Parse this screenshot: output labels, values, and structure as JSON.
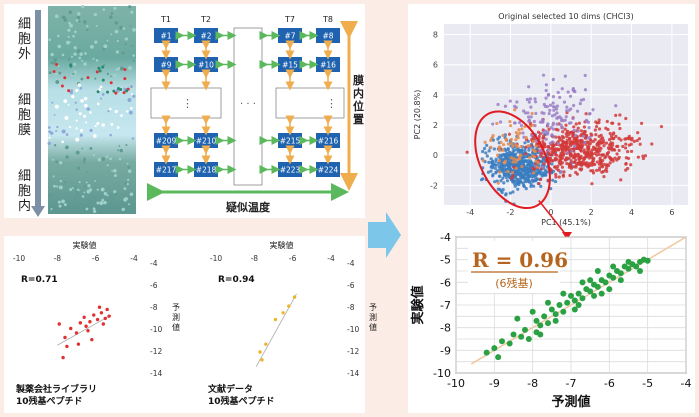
{
  "membrane": {
    "side_labels": [
      "細胞外",
      "細胞膜",
      "細胞内"
    ],
    "columns": [
      "T1",
      "T2",
      "T7",
      "T8"
    ],
    "replicas": [
      [
        "#1",
        "#2",
        "#7",
        "#8"
      ],
      [
        "#9",
        "#10",
        "#15",
        "#16"
      ],
      [
        "#209",
        "#210",
        "#215",
        "#216"
      ],
      [
        "#217",
        "#218",
        "#223",
        "#224"
      ]
    ],
    "vertical_ellipsis": "⋮",
    "horizontal_ellipsis": "· · ·",
    "vertical_axis_label": "膜内位置",
    "horizontal_axis_label": "疑似温度",
    "colors": {
      "box": "#1f63b0",
      "arrow_green": "#5cb85c",
      "arrow_orange": "#f0ad4e",
      "side_arrow": "#7d8fa5"
    }
  },
  "mini_charts": [
    {
      "type": "scatter",
      "xlabel": "実験値",
      "ylabel": "予測値",
      "xticks": [
        "-10",
        "-8",
        "-6",
        "-4"
      ],
      "yticks": [
        "-4",
        "-6",
        "-8",
        "-10",
        "-12",
        "-14"
      ],
      "xlim": [
        -10,
        -4
      ],
      "ylim": [
        -14,
        -4
      ],
      "r_text": "R=0.71",
      "caption": [
        "製薬会社ライブラリ",
        "10残基ペプチド"
      ],
      "color": "#e03030",
      "points": [
        [
          -7.9,
          -9.0
        ],
        [
          -7.6,
          -10.2
        ],
        [
          -7.3,
          -9.4
        ],
        [
          -7.0,
          -9.8
        ],
        [
          -6.8,
          -8.9
        ],
        [
          -6.6,
          -8.4
        ],
        [
          -6.5,
          -9.2
        ],
        [
          -6.3,
          -8.8
        ],
        [
          -6.1,
          -8.2
        ],
        [
          -5.9,
          -8.6
        ],
        [
          -5.7,
          -8.0
        ],
        [
          -5.5,
          -8.5
        ],
        [
          -5.4,
          -7.7
        ],
        [
          -5.3,
          -8.3
        ],
        [
          -5.8,
          -7.5
        ],
        [
          -6.2,
          -10.4
        ],
        [
          -7.5,
          -11.0
        ],
        [
          -6.9,
          -10.8
        ],
        [
          -5.6,
          -9.0
        ],
        [
          -6.4,
          -9.6
        ],
        [
          -7.7,
          -12.0
        ]
      ],
      "fit": [
        [
          -8.0,
          -10.9
        ],
        [
          -5.2,
          -8.2
        ]
      ]
    },
    {
      "type": "scatter",
      "xlabel": "実験値",
      "ylabel": "予測値",
      "xticks": [
        "-10",
        "-8",
        "-6",
        "-4"
      ],
      "yticks": [
        "-4",
        "-6",
        "-8",
        "-10",
        "-12",
        "-14"
      ],
      "xlim": [
        -10,
        -4
      ],
      "ylim": [
        -14,
        -4
      ],
      "r_text": "R=0.94",
      "caption": [
        "文献データ",
        "10残基ペプチド"
      ],
      "color": "#f0b429",
      "points": [
        [
          -7.7,
          -11.5
        ],
        [
          -7.4,
          -10.8
        ],
        [
          -6.9,
          -8.6
        ],
        [
          -6.2,
          -7.4
        ],
        [
          -5.9,
          -6.6
        ],
        [
          -7.6,
          -12.2
        ],
        [
          -6.5,
          -8.0
        ]
      ],
      "fit": [
        [
          -7.9,
          -12.8
        ],
        [
          -5.8,
          -6.3
        ]
      ]
    }
  ],
  "chart_data": [
    {
      "type": "scatter",
      "title": "Original selected 10 dims (CHCl3)",
      "xlabel": "PC1 (45.1%)",
      "ylabel": "PC2 (20.8%)",
      "xlim": [
        -5.3,
        6.8
      ],
      "ylim": [
        -3.3,
        8.7
      ],
      "xticks": [
        -4,
        -2,
        0,
        2,
        4,
        6
      ],
      "yticks": [
        -2,
        0,
        2,
        4,
        6,
        8
      ],
      "grid": true,
      "background": "#eaeaf2",
      "series": [
        {
          "color": "#3a7dbf",
          "count": 520,
          "center": [
            -1.6,
            -0.7
          ],
          "spread": [
            0.85,
            0.75
          ]
        },
        {
          "color": "#d23a3a",
          "count": 560,
          "center": [
            1.4,
            0.4
          ],
          "spread": [
            1.25,
            0.85
          ]
        },
        {
          "color": "#9a7fc7",
          "count": 140,
          "center": [
            0.2,
            2.4
          ],
          "spread": [
            1.1,
            1.2
          ]
        },
        {
          "color": "#e8884a",
          "count": 70,
          "center": [
            -1.7,
            0.4
          ],
          "spread": [
            0.7,
            0.9
          ]
        }
      ],
      "highlight": "#e11b22"
    },
    {
      "type": "scatter",
      "r_label": "R = 0.96",
      "note": "(6残基)",
      "xlabel": "予測値",
      "ylabel": "実験値",
      "xlim": [
        -10,
        -4
      ],
      "ylim": [
        -10,
        -4
      ],
      "xticks": [
        "-10",
        "-9",
        "-8",
        "-7",
        "-6",
        "-5",
        "-4"
      ],
      "yticks": [
        "-4",
        "-4.5",
        "-5",
        "-5.5",
        "-6",
        "-6.5",
        "-7",
        "-7.5",
        "-8",
        "-8.5",
        "-9",
        "-9.5",
        "-10"
      ],
      "grid": true,
      "color": "#2aa142",
      "line_color": "#f0c8a0",
      "points": [
        [
          -9.2,
          -9.1
        ],
        [
          -9.0,
          -8.9
        ],
        [
          -8.8,
          -8.6
        ],
        [
          -8.6,
          -8.7
        ],
        [
          -8.5,
          -8.3
        ],
        [
          -8.3,
          -8.4
        ],
        [
          -8.2,
          -8.1
        ],
        [
          -8.1,
          -8.5
        ],
        [
          -7.9,
          -7.7
        ],
        [
          -7.8,
          -7.9
        ],
        [
          -7.7,
          -7.5
        ],
        [
          -7.6,
          -7.8
        ],
        [
          -7.5,
          -7.2
        ],
        [
          -7.4,
          -7.4
        ],
        [
          -7.3,
          -7.0
        ],
        [
          -7.2,
          -7.3
        ],
        [
          -7.1,
          -6.9
        ],
        [
          -7.0,
          -6.6
        ],
        [
          -6.9,
          -6.8
        ],
        [
          -6.8,
          -6.5
        ],
        [
          -6.7,
          -6.7
        ],
        [
          -6.6,
          -6.3
        ],
        [
          -6.5,
          -6.4
        ],
        [
          -6.4,
          -6.1
        ],
        [
          -6.3,
          -6.2
        ],
        [
          -6.2,
          -5.9
        ],
        [
          -6.1,
          -6.0
        ],
        [
          -6.0,
          -5.7
        ],
        [
          -5.9,
          -5.8
        ],
        [
          -5.8,
          -5.5
        ],
        [
          -5.7,
          -5.6
        ],
        [
          -5.6,
          -5.3
        ],
        [
          -5.5,
          -5.4
        ],
        [
          -5.4,
          -5.2
        ],
        [
          -5.3,
          -5.3
        ],
        [
          -5.2,
          -5.1
        ],
        [
          -5.1,
          -5.0
        ],
        [
          -5.0,
          -5.05
        ],
        [
          -8.4,
          -7.6
        ],
        [
          -7.9,
          -8.2
        ],
        [
          -7.2,
          -6.5
        ],
        [
          -6.9,
          -7.2
        ],
        [
          -6.5,
          -5.9
        ],
        [
          -6.2,
          -6.5
        ],
        [
          -5.9,
          -5.3
        ],
        [
          -8.9,
          -9.3
        ],
        [
          -7.6,
          -6.9
        ],
        [
          -6.7,
          -6.0
        ],
        [
          -6.0,
          -6.3
        ],
        [
          -5.5,
          -5.1
        ],
        [
          -8.0,
          -7.3
        ],
        [
          -7.4,
          -7.7
        ],
        [
          -6.4,
          -6.6
        ],
        [
          -5.7,
          -5.9
        ],
        [
          -6.8,
          -7.0
        ],
        [
          -7.8,
          -8.3
        ],
        [
          -6.3,
          -5.5
        ],
        [
          -5.2,
          -5.5
        ]
      ]
    }
  ]
}
